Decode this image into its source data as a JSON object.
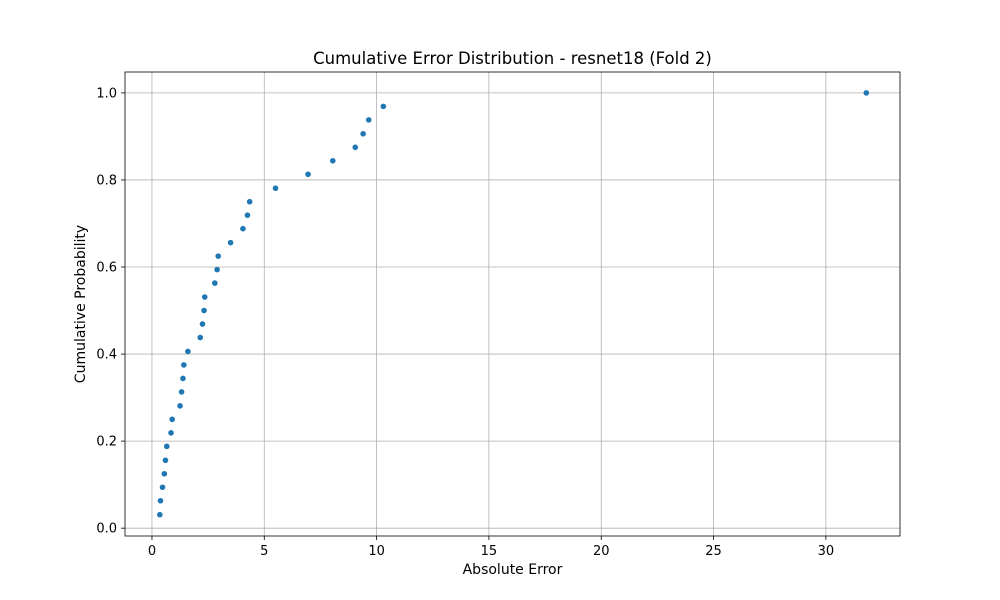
{
  "chart_data": {
    "type": "scatter",
    "title": "Cumulative Error Distribution - resnet18 (Fold 2)",
    "xlabel": "Absolute Error",
    "ylabel": "Cumulative Probability",
    "xlim": [
      -1.2,
      33.3
    ],
    "ylim": [
      -0.018,
      1.048
    ],
    "x_ticks": [
      0,
      5,
      10,
      15,
      20,
      25,
      30
    ],
    "x_tick_labels": [
      "0",
      "5",
      "10",
      "15",
      "20",
      "25",
      "30"
    ],
    "y_ticks": [
      0.0,
      0.2,
      0.4,
      0.6,
      0.8,
      1.0
    ],
    "y_tick_labels": [
      "0.0",
      "0.2",
      "0.4",
      "0.6",
      "0.8",
      "1.0"
    ],
    "grid": true,
    "marker_color": "#1f77b4",
    "points": [
      {
        "x": 0.35,
        "y": 0.031
      },
      {
        "x": 0.38,
        "y": 0.063
      },
      {
        "x": 0.47,
        "y": 0.094
      },
      {
        "x": 0.55,
        "y": 0.125
      },
      {
        "x": 0.6,
        "y": 0.156
      },
      {
        "x": 0.66,
        "y": 0.188
      },
      {
        "x": 0.85,
        "y": 0.219
      },
      {
        "x": 0.9,
        "y": 0.25
      },
      {
        "x": 1.25,
        "y": 0.281
      },
      {
        "x": 1.32,
        "y": 0.313
      },
      {
        "x": 1.38,
        "y": 0.344
      },
      {
        "x": 1.42,
        "y": 0.375
      },
      {
        "x": 1.6,
        "y": 0.406
      },
      {
        "x": 2.15,
        "y": 0.438
      },
      {
        "x": 2.25,
        "y": 0.469
      },
      {
        "x": 2.32,
        "y": 0.5
      },
      {
        "x": 2.35,
        "y": 0.531
      },
      {
        "x": 2.8,
        "y": 0.563
      },
      {
        "x": 2.9,
        "y": 0.594
      },
      {
        "x": 2.95,
        "y": 0.625
      },
      {
        "x": 3.5,
        "y": 0.656
      },
      {
        "x": 4.05,
        "y": 0.688
      },
      {
        "x": 4.25,
        "y": 0.719
      },
      {
        "x": 4.35,
        "y": 0.75
      },
      {
        "x": 5.5,
        "y": 0.781
      },
      {
        "x": 6.95,
        "y": 0.813
      },
      {
        "x": 8.05,
        "y": 0.844
      },
      {
        "x": 9.05,
        "y": 0.875
      },
      {
        "x": 9.4,
        "y": 0.906
      },
      {
        "x": 9.65,
        "y": 0.938
      },
      {
        "x": 10.3,
        "y": 0.969
      },
      {
        "x": 31.8,
        "y": 1.0
      }
    ]
  }
}
